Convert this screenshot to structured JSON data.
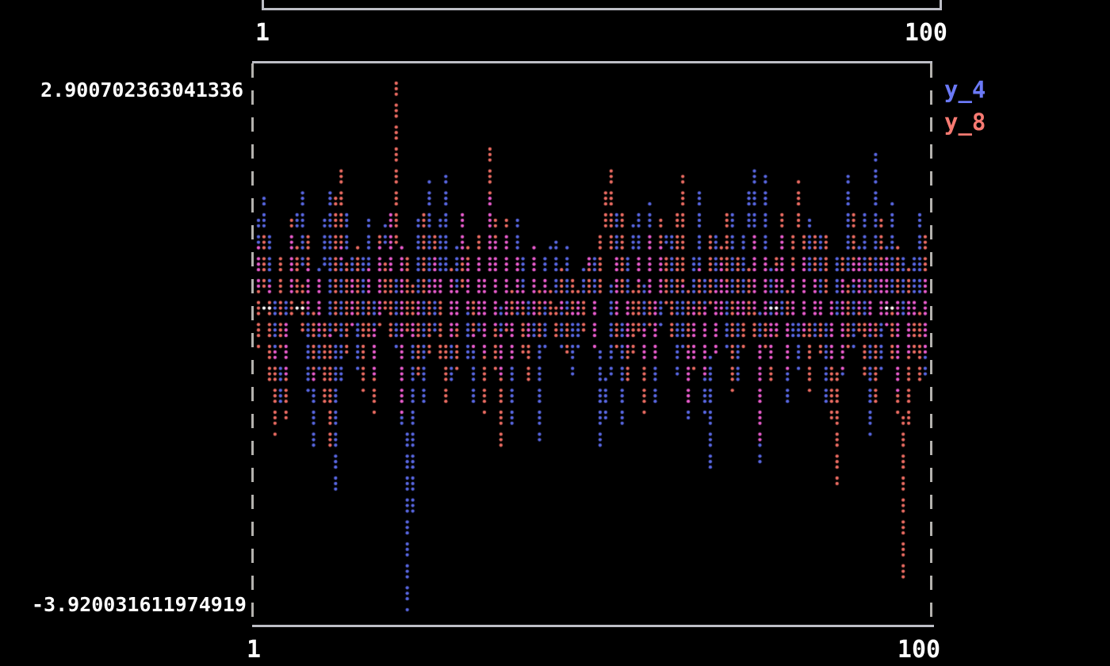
{
  "top_ruler": {
    "x_min_label": "1",
    "x_max_label": "100"
  },
  "chart": {
    "y_max_label": "2.900702363041336",
    "y_min_label": "-3.920031611974919",
    "x_min_label": "1",
    "x_max_label": "100",
    "background_color": "#000000",
    "frame_color": "#bdbec6",
    "label_color": "#ffffff"
  },
  "chart_data": {
    "type": "scatter",
    "title": "",
    "xlabel": "",
    "ylabel": "",
    "x_range": [
      1,
      100
    ],
    "ylim": [
      -3.920031611974919,
      2.900702363041336
    ],
    "grid": false,
    "legend_position": "top-right",
    "render_style": "braille-dots",
    "overlap_color": "#ee5ed2",
    "zero_overlap_marker_color": "#ffffff",
    "zero_overlap_markers_x": [
      2.7,
      7.7,
      76.9,
      93.3
    ],
    "x": [
      1,
      2,
      3,
      4,
      5,
      6,
      7,
      8,
      9,
      10,
      11,
      12,
      13,
      14,
      15,
      16,
      17,
      18,
      19,
      20,
      21,
      22,
      23,
      24,
      25,
      26,
      27,
      28,
      29,
      30,
      31,
      32,
      33,
      34,
      35,
      36,
      37,
      38,
      39,
      40,
      41,
      42,
      43,
      44,
      45,
      46,
      47,
      48,
      49,
      50,
      51,
      52,
      53,
      54,
      55,
      56,
      57,
      58,
      59,
      60,
      61,
      62,
      63,
      64,
      65,
      66,
      67,
      68,
      69,
      70,
      71,
      72,
      73,
      74,
      75,
      76,
      77,
      78,
      79,
      80,
      81,
      82,
      83,
      84,
      85,
      86,
      87,
      88,
      89,
      90,
      91,
      92,
      93,
      94,
      95,
      96,
      97,
      98,
      99,
      100
    ],
    "series": [
      {
        "name": "y_4",
        "color": "#5a69e6",
        "legend_color": "#6b79f7",
        "values": [
          0.3,
          0.9,
          1.4,
          -0.4,
          -1.2,
          -0.6,
          0.8,
          1.5,
          -0.5,
          -1.8,
          0.2,
          1.5,
          -2.4,
          0.5,
          1.2,
          -0.8,
          0.4,
          1.1,
          -0.9,
          0.6,
          1.3,
          -0.5,
          0.8,
          -3.92,
          1.1,
          -1.2,
          1.64,
          -0.3,
          1.7,
          -1.0,
          0.5,
          1.2,
          -1.3,
          0.7,
          -0.6,
          1.4,
          -0.9,
          0.9,
          -1.5,
          1.1,
          -0.4,
          0.8,
          -1.75,
          0.6,
          0.87,
          -0.5,
          0.75,
          -0.9,
          0.4,
          0.6,
          0.7,
          -1.8,
          -0.6,
          1.2,
          -1.55,
          0.5,
          1.3,
          -0.7,
          1.35,
          -1.2,
          0.8,
          1.0,
          -0.9,
          0.3,
          -1.4,
          1.5,
          -0.8,
          -2.06,
          0.9,
          -0.5,
          1.2,
          -1.0,
          0.6,
          1.83,
          -2.0,
          1.67,
          -0.7,
          0.9,
          -1.3,
          0.5,
          -0.8,
          1.1,
          -0.4,
          0.95,
          -1.2,
          0.6,
          -0.9,
          1.72,
          -0.5,
          1.3,
          -1.65,
          2.01,
          -0.8,
          1.35,
          -1.1,
          0.7,
          -0.6,
          1.2,
          -0.9,
          0.4
        ]
      },
      {
        "name": "y_8",
        "color": "#f06e64",
        "legend_color": "#f87a72",
        "values": [
          0.8,
          -0.5,
          1.0,
          -1.65,
          0.6,
          -1.44,
          1.1,
          -0.3,
          0.9,
          -1.0,
          0.4,
          -1.8,
          1.2,
          1.78,
          -0.6,
          0.8,
          -1.1,
          0.5,
          -1.35,
          0.9,
          -0.4,
          2.9,
          -1.34,
          0.7,
          -0.9,
          1.2,
          -0.6,
          1.0,
          -1.2,
          0.5,
          -0.8,
          1.3,
          -0.5,
          0.9,
          -1.34,
          2.14,
          -1.8,
          1.1,
          -0.7,
          0.6,
          -1.0,
          0.8,
          -0.4,
          0.4,
          -0.4,
          0.5,
          -0.6,
          0.4,
          -0.3,
          0.6,
          -0.5,
          0.8,
          1.79,
          -0.5,
          1.2,
          -1.0,
          0.6,
          -1.35,
          0.9,
          -0.7,
          1.1,
          -0.4,
          0.8,
          1.67,
          -1.2,
          0.5,
          -0.9,
          1.0,
          -0.6,
          1.3,
          -1.1,
          0.7,
          -0.5,
          0.9,
          -1.75,
          0.6,
          -1.0,
          1.2,
          -0.8,
          0.5,
          1.62,
          -1.1,
          0.9,
          -0.6,
          1.0,
          -2.3,
          0.7,
          -0.5,
          1.2,
          -0.9,
          0.6,
          -1.3,
          1.1,
          -0.7,
          0.8,
          -3.54,
          0.5,
          -1.0,
          0.9,
          -0.6
        ]
      }
    ]
  }
}
